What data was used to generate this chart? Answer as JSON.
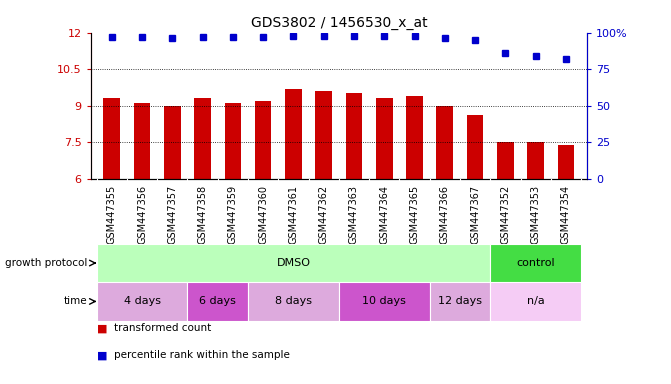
{
  "title": "GDS3802 / 1456530_x_at",
  "samples": [
    "GSM447355",
    "GSM447356",
    "GSM447357",
    "GSM447358",
    "GSM447359",
    "GSM447360",
    "GSM447361",
    "GSM447362",
    "GSM447363",
    "GSM447364",
    "GSM447365",
    "GSM447366",
    "GSM447367",
    "GSM447352",
    "GSM447353",
    "GSM447354"
  ],
  "bar_values": [
    9.3,
    9.1,
    9.0,
    9.3,
    9.1,
    9.2,
    9.7,
    9.6,
    9.5,
    9.3,
    9.4,
    9.0,
    8.6,
    7.5,
    7.5,
    7.4
  ],
  "percentile_values": [
    97,
    97,
    96,
    97,
    97,
    97,
    98,
    98,
    98,
    98,
    98,
    96,
    95,
    86,
    84,
    82
  ],
  "bar_color": "#cc0000",
  "dot_color": "#0000cc",
  "ylim_left": [
    6,
    12
  ],
  "ylim_right": [
    0,
    100
  ],
  "yticks_left": [
    6,
    7.5,
    9,
    10.5,
    12
  ],
  "yticks_right": [
    0,
    25,
    50,
    75,
    100
  ],
  "grid_values": [
    7.5,
    9.0,
    10.5
  ],
  "growth_protocol_groups": [
    {
      "label": "DMSO",
      "start": 0,
      "end": 13,
      "color": "#bbffbb"
    },
    {
      "label": "control",
      "start": 13,
      "end": 16,
      "color": "#44dd44"
    }
  ],
  "time_groups": [
    {
      "label": "4 days",
      "start": 0,
      "end": 3,
      "color": "#ddaadd"
    },
    {
      "label": "6 days",
      "start": 3,
      "end": 5,
      "color": "#cc55cc"
    },
    {
      "label": "8 days",
      "start": 5,
      "end": 8,
      "color": "#ddaadd"
    },
    {
      "label": "10 days",
      "start": 8,
      "end": 11,
      "color": "#cc55cc"
    },
    {
      "label": "12 days",
      "start": 11,
      "end": 13,
      "color": "#ddaadd"
    },
    {
      "label": "n/a",
      "start": 13,
      "end": 16,
      "color": "#f5ccf5"
    }
  ],
  "legend_items": [
    {
      "label": "transformed count",
      "color": "#cc0000"
    },
    {
      "label": "percentile rank within the sample",
      "color": "#0000cc"
    }
  ],
  "background_color": "#ffffff",
  "xlabel_bg_color": "#e0e0e0",
  "tick_label_fontsize": 7,
  "bar_width": 0.55
}
